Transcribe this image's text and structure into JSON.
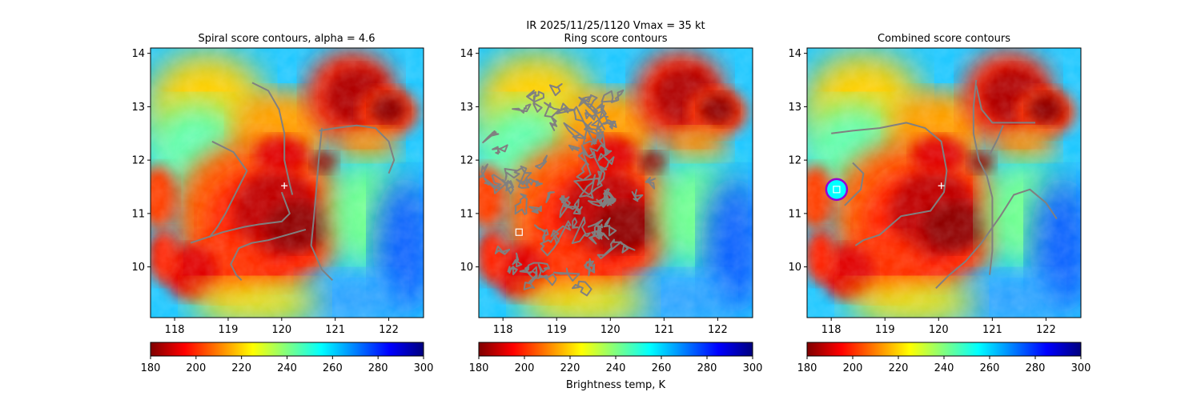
{
  "suptitle": "IR  2025/11/25/1120    Vmax = 35 kt",
  "colorbar_label": "Brightness temp, K",
  "colormap": [
    "#7f0000",
    "#ff0000",
    "#ff8000",
    "#ffff00",
    "#80ff80",
    "#00ffff",
    "#0080ff",
    "#0000ff",
    "#00007f"
  ],
  "contour_color": "#808080",
  "circle_color": "#9400d3",
  "chart_data": [
    {
      "type": "heatmap",
      "title": "Spiral score contours, alpha =  4.6",
      "xlim": [
        117.55,
        122.65
      ],
      "ylim": [
        9.05,
        14.1
      ],
      "xticks": [
        118,
        119,
        120,
        121,
        122
      ],
      "yticks": [
        10,
        11,
        12,
        13,
        14
      ],
      "cbar": {
        "range": [
          180,
          300
        ],
        "ticks": [
          180,
          200,
          220,
          240,
          260,
          280,
          300
        ]
      },
      "center_marker": [
        120.05,
        11.52
      ],
      "contours": [
        [
          [
            120.0,
            11.4
          ],
          [
            120.15,
            11.0
          ],
          [
            120.0,
            10.85
          ],
          [
            119.6,
            10.8
          ],
          [
            119.3,
            10.75
          ],
          [
            118.9,
            10.65
          ],
          [
            118.6,
            10.55
          ],
          [
            118.3,
            10.45
          ]
        ],
        [
          [
            118.7,
            12.35
          ],
          [
            119.1,
            12.15
          ],
          [
            119.35,
            11.8
          ],
          [
            119.15,
            11.4
          ],
          [
            118.95,
            11.0
          ],
          [
            118.8,
            10.75
          ],
          [
            118.65,
            10.55
          ]
        ],
        [
          [
            119.45,
            13.45
          ],
          [
            119.75,
            13.3
          ],
          [
            119.95,
            12.95
          ],
          [
            120.05,
            12.5
          ],
          [
            120.05,
            12.0
          ],
          [
            120.15,
            11.55
          ],
          [
            120.2,
            11.35
          ]
        ],
        [
          [
            120.7,
            12.55
          ],
          [
            121.0,
            12.6
          ],
          [
            121.4,
            12.65
          ],
          [
            121.75,
            12.6
          ],
          [
            122.0,
            12.35
          ],
          [
            122.1,
            12.0
          ],
          [
            122.0,
            11.75
          ]
        ],
        [
          [
            120.75,
            12.6
          ],
          [
            120.7,
            12.1
          ],
          [
            120.65,
            11.5
          ],
          [
            120.6,
            10.9
          ],
          [
            120.55,
            10.4
          ],
          [
            120.75,
            9.95
          ],
          [
            120.95,
            9.75
          ]
        ],
        [
          [
            120.45,
            10.7
          ],
          [
            120.1,
            10.6
          ],
          [
            119.75,
            10.5
          ],
          [
            119.45,
            10.45
          ],
          [
            119.2,
            10.35
          ],
          [
            119.05,
            10.05
          ],
          [
            119.15,
            9.85
          ],
          [
            119.25,
            9.75
          ]
        ]
      ]
    },
    {
      "type": "heatmap",
      "title": "Ring score contours",
      "xlim": [
        117.55,
        122.65
      ],
      "ylim": [
        9.05,
        14.1
      ],
      "xticks": [
        118,
        119,
        120,
        121,
        122
      ],
      "yticks": [
        10,
        11,
        12,
        13,
        14
      ],
      "cbar": {
        "range": [
          180,
          300
        ],
        "ticks": [
          180,
          200,
          220,
          240,
          260,
          280,
          300
        ]
      },
      "square_marker": [
        118.3,
        10.65
      ],
      "ring_region": {
        "center": [
          119.1,
          11.35
        ],
        "rx": 1.5,
        "ry": 1.95
      }
    },
    {
      "type": "heatmap",
      "title": "Combined score contours",
      "xlim": [
        117.55,
        122.65
      ],
      "ylim": [
        9.05,
        14.1
      ],
      "xticks": [
        118,
        119,
        120,
        121,
        122
      ],
      "yticks": [
        10,
        11,
        12,
        13,
        14
      ],
      "cbar": {
        "range": [
          180,
          300
        ],
        "ticks": [
          180,
          200,
          220,
          240,
          260,
          280,
          300
        ]
      },
      "center_marker": [
        120.05,
        11.52
      ],
      "circle_marker": [
        118.1,
        11.45
      ],
      "square_marker": [
        118.1,
        11.45
      ],
      "contours": [
        [
          [
            118.4,
            11.95
          ],
          [
            118.6,
            11.75
          ],
          [
            118.55,
            11.45
          ],
          [
            118.35,
            11.25
          ],
          [
            118.25,
            11.15
          ]
        ],
        [
          [
            118.0,
            12.5
          ],
          [
            118.4,
            12.55
          ],
          [
            118.9,
            12.6
          ],
          [
            119.4,
            12.7
          ],
          [
            119.75,
            12.6
          ],
          [
            120.05,
            12.35
          ],
          [
            120.15,
            11.8
          ],
          [
            120.1,
            11.4
          ],
          [
            119.85,
            11.05
          ],
          [
            119.3,
            10.95
          ],
          [
            118.9,
            10.6
          ],
          [
            118.6,
            10.5
          ],
          [
            118.45,
            10.4
          ]
        ],
        [
          [
            121.8,
            12.7
          ],
          [
            121.0,
            12.7
          ],
          [
            120.8,
            12.95
          ],
          [
            120.7,
            13.4
          ]
        ],
        [
          [
            120.7,
            13.5
          ],
          [
            120.65,
            13.0
          ],
          [
            120.65,
            12.5
          ],
          [
            120.75,
            12.0
          ],
          [
            120.9,
            11.7
          ],
          [
            121.0,
            11.3
          ],
          [
            121.0,
            10.8
          ],
          [
            121.0,
            10.3
          ],
          [
            120.95,
            9.85
          ]
        ],
        [
          [
            122.2,
            10.9
          ],
          [
            122.0,
            11.2
          ],
          [
            121.7,
            11.45
          ],
          [
            121.4,
            11.35
          ],
          [
            121.15,
            10.95
          ],
          [
            120.8,
            10.45
          ],
          [
            120.5,
            10.1
          ],
          [
            120.2,
            9.85
          ],
          [
            119.95,
            9.6
          ]
        ],
        [
          [
            120.95,
            12.1
          ],
          [
            121.1,
            12.4
          ],
          [
            121.2,
            12.65
          ]
        ]
      ]
    }
  ]
}
